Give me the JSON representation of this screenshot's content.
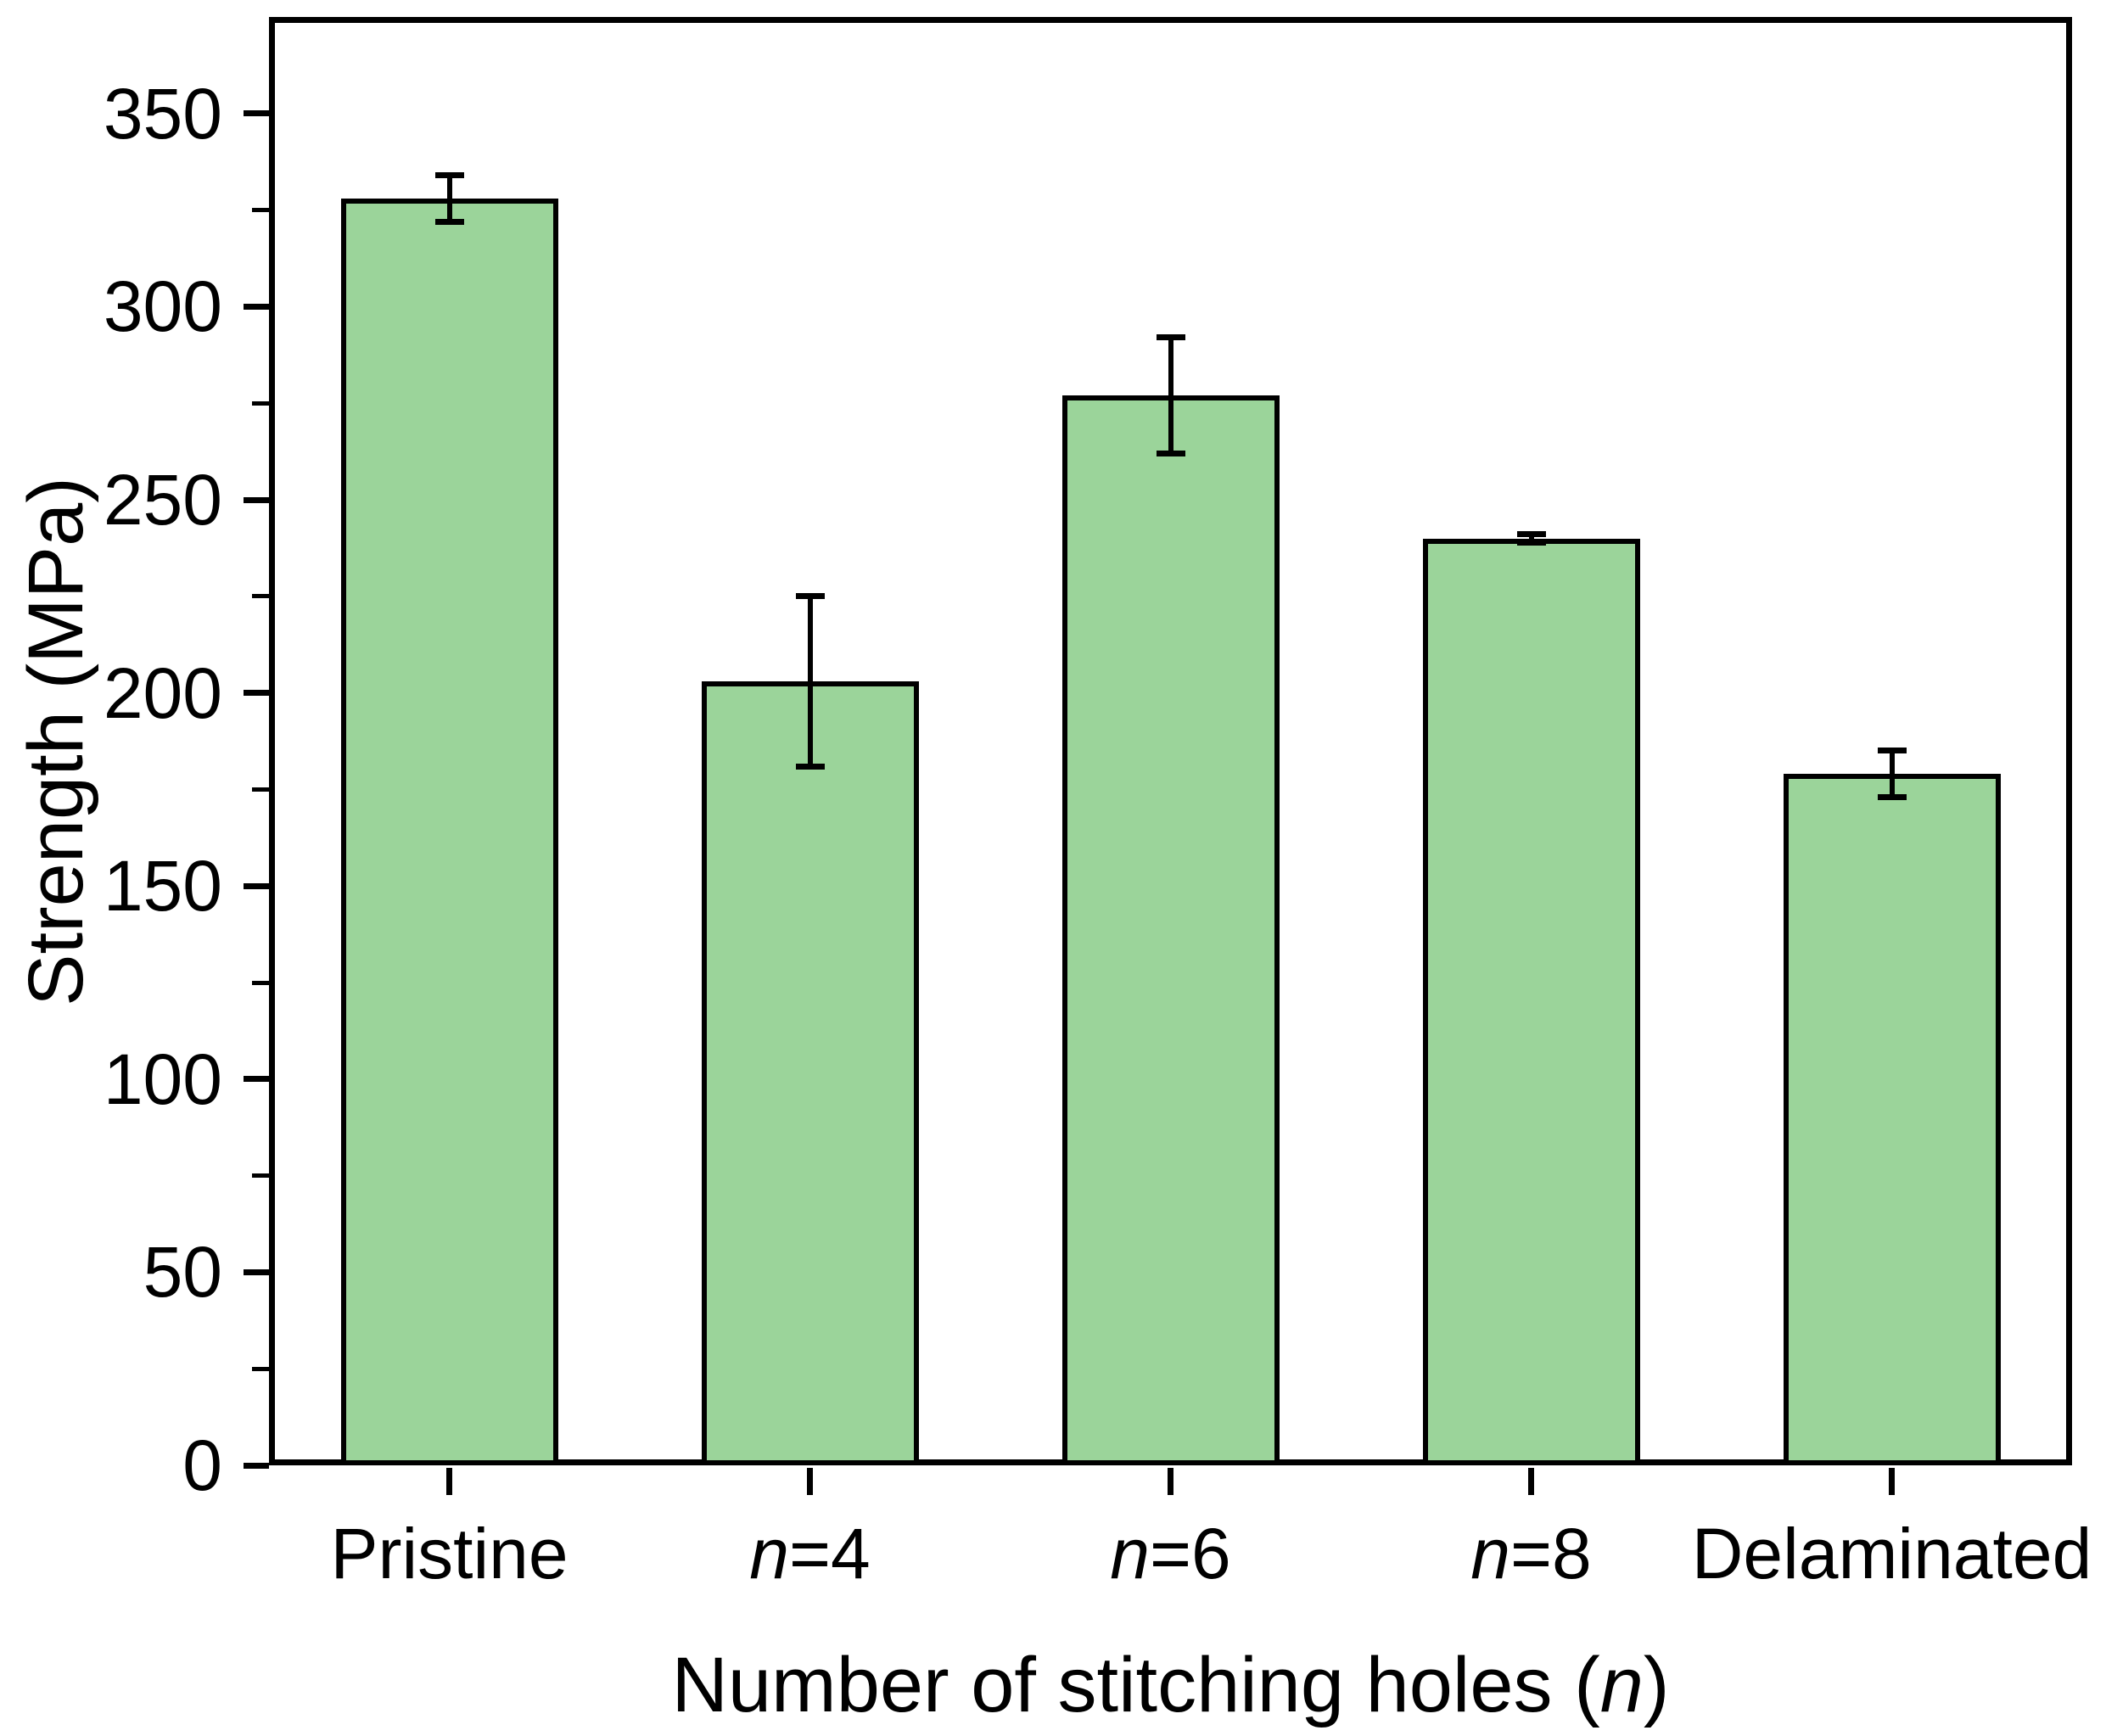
{
  "figure": {
    "background": "#ffffff",
    "frame_color": "#000000"
  },
  "chart_data": {
    "type": "bar",
    "title": "",
    "xlabel_plain": "Number of stitching holes (n)",
    "xlabel_segments": [
      {
        "t": "Number of stitching holes ("
      },
      {
        "t": "n",
        "i": true
      },
      {
        "t": ")"
      }
    ],
    "ylabel": "Strength (MPa)",
    "categories_plain": [
      "Pristine",
      "n=4",
      "n=6",
      "n=8",
      "Delaminated"
    ],
    "category_segments": [
      [
        {
          "t": "Pristine"
        }
      ],
      [
        {
          "t": "n",
          "i": true
        },
        {
          "t": "=4"
        }
      ],
      [
        {
          "t": "n",
          "i": true
        },
        {
          "t": "=6"
        }
      ],
      [
        {
          "t": "n",
          "i": true
        },
        {
          "t": "=8"
        }
      ],
      [
        {
          "t": "Delaminated"
        }
      ]
    ],
    "series": [
      {
        "name": "Strength",
        "values": [
          328,
          203,
          277,
          240,
          179
        ],
        "errors": [
          6,
          22,
          15,
          1,
          6
        ]
      }
    ],
    "bar_fill": "#9BD49A",
    "bar_edge": "#000000",
    "error_color": "#000000",
    "ylim": [
      0,
      375
    ],
    "ytick_major": [
      0,
      50,
      100,
      150,
      200,
      250,
      300,
      350
    ],
    "ytick_minor_interval": 25,
    "grid": false,
    "legend": "none",
    "frame": "box"
  }
}
